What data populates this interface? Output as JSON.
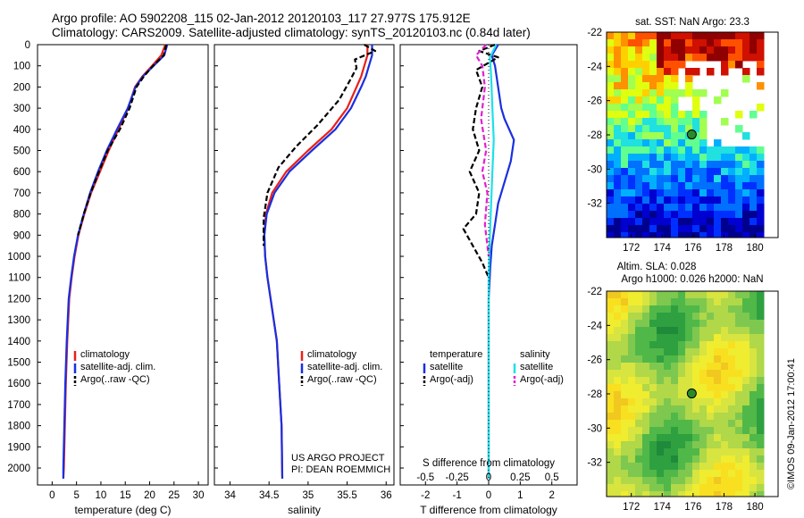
{
  "header": {
    "line1": "Argo profile: AO 5902208_115 02-Jan-2012 20120103_117 27.977S 175.912E",
    "line2": "Climatology: CARS2009. Satellite-adjusted climatology: synTS_20120103.nc (0.84d later)"
  },
  "colors": {
    "climatology": "#e8201a",
    "satellite_adj_clim": "#1a2fe0",
    "argo": "#000000",
    "temp_satellite": "#1a2fe0",
    "temp_argo": "#000000",
    "sal_satellite": "#1fe0e8",
    "sal_argo": "#e020d0"
  },
  "chart_data": [
    {
      "type": "line",
      "id": "temperature_profile",
      "xlabel": "temperature (deg C)",
      "ylabel": "",
      "xlim": [
        -3,
        32
      ],
      "ylim": [
        2080,
        0
      ],
      "xticks": [
        0,
        5,
        10,
        15,
        20,
        25,
        30
      ],
      "yticks": [
        0,
        100,
        200,
        300,
        400,
        500,
        600,
        700,
        800,
        900,
        1000,
        1100,
        1200,
        1300,
        1400,
        1500,
        1600,
        1700,
        1800,
        1900,
        2000
      ],
      "legend": [
        "climatology",
        "satellite-adj. clim.",
        "Argo(..raw -QC)"
      ],
      "legend_placement": "lower-middle",
      "series": [
        {
          "name": "climatology",
          "color": "red",
          "style": "solid",
          "x": [
            23.2,
            22.4,
            20.5,
            18.5,
            17.0,
            15.6,
            13.6,
            11.6,
            9.8,
            8.0,
            6.6,
            5.4,
            4.6,
            4.0,
            3.5,
            3.1,
            2.8,
            2.6,
            2.4,
            2.3
          ],
          "y": [
            0,
            50,
            100,
            150,
            200,
            300,
            400,
            500,
            600,
            700,
            800,
            900,
            1000,
            1100,
            1200,
            1400,
            1600,
            1800,
            2000,
            2050
          ]
        },
        {
          "name": "satellite-adj. clim.",
          "color": "blue",
          "style": "solid",
          "x": [
            23.6,
            23.0,
            20.8,
            18.6,
            17.1,
            15.5,
            13.3,
            11.2,
            9.4,
            7.8,
            6.5,
            5.3,
            4.5,
            3.9,
            3.4,
            3.0,
            2.7,
            2.5,
            2.3,
            2.3
          ],
          "y": [
            0,
            50,
            100,
            150,
            200,
            300,
            400,
            500,
            600,
            700,
            800,
            900,
            1000,
            1100,
            1200,
            1400,
            1600,
            1800,
            2000,
            2050
          ]
        },
        {
          "name": "Argo(..raw -QC)",
          "color": "black",
          "style": "dashed",
          "x": [
            23.4,
            22.9,
            20.7,
            18.8,
            17.3,
            15.9,
            13.9,
            11.4,
            9.6,
            7.9,
            6.5,
            5.3
          ],
          "y": [
            0,
            50,
            100,
            150,
            200,
            300,
            400,
            500,
            600,
            700,
            800,
            900
          ]
        }
      ]
    },
    {
      "type": "line",
      "id": "salinity_profile",
      "xlabel": "salinity",
      "ylabel": "",
      "xlim": [
        33.8,
        36.1
      ],
      "ylim": [
        2080,
        0
      ],
      "xticks": [
        34,
        34.5,
        35,
        35.5,
        36
      ],
      "legend": [
        "climatology",
        "satellite-adj. clim.",
        "Argo(..raw -QC)"
      ],
      "legend_placement": "lower-right",
      "annotation": [
        "US ARGO PROJECT",
        "PI: DEAN ROEMMICH"
      ],
      "series": [
        {
          "name": "climatology",
          "color": "red",
          "style": "solid",
          "x": [
            35.76,
            35.76,
            35.72,
            35.68,
            35.62,
            35.5,
            35.3,
            35.0,
            34.72,
            34.54,
            34.46,
            34.44,
            34.45,
            34.48,
            34.52,
            34.56,
            34.6,
            34.63,
            34.66,
            34.67
          ],
          "y": [
            0,
            50,
            100,
            150,
            200,
            300,
            400,
            500,
            600,
            700,
            800,
            900,
            1000,
            1100,
            1200,
            1300,
            1400,
            1600,
            1800,
            2050
          ]
        },
        {
          "name": "satellite-adj. clim.",
          "color": "blue",
          "style": "solid",
          "x": [
            35.82,
            35.82,
            35.78,
            35.74,
            35.68,
            35.55,
            35.35,
            35.05,
            34.76,
            34.57,
            34.47,
            34.44,
            34.45,
            34.48,
            34.52,
            34.56,
            34.6,
            34.63,
            34.66,
            34.67
          ],
          "y": [
            0,
            50,
            100,
            150,
            200,
            300,
            400,
            500,
            600,
            700,
            800,
            900,
            1000,
            1100,
            1200,
            1300,
            1400,
            1600,
            1800,
            2050
          ]
        },
        {
          "name": "Argo(..raw -QC)",
          "color": "black",
          "style": "dashed",
          "x": [
            35.72,
            35.86,
            35.6,
            35.62,
            35.55,
            35.4,
            35.12,
            34.85,
            34.62,
            34.48,
            34.43,
            34.43
          ],
          "y": [
            0,
            30,
            70,
            110,
            160,
            260,
            380,
            480,
            580,
            700,
            820,
            950
          ]
        }
      ]
    },
    {
      "type": "line",
      "id": "difference_profile",
      "xlabel": "T difference from climatology",
      "title_secondary": "S difference from climatology",
      "xticks": [
        -2,
        -1,
        0,
        1,
        2
      ],
      "xticks_secondary": [
        "-0.5",
        "-0.25",
        "0",
        "0.25",
        "0.5"
      ],
      "xlim": [
        -2.8,
        2.8
      ],
      "ylim": [
        2080,
        0
      ],
      "legend_groups": [
        {
          "header": "temperature",
          "items": [
            "satellite",
            "Argo(-adj)"
          ]
        },
        {
          "header": "salinity",
          "items": [
            "satellite",
            "Argo(-adj)"
          ]
        }
      ],
      "series": [
        {
          "name": "temperature satellite",
          "color": "blue",
          "style": "solid",
          "x": [
            0.3,
            0.1,
            0.2,
            0.3,
            0.4,
            0.5,
            0.8,
            0.7,
            0.5,
            0.3,
            0.2,
            0.1,
            0.05,
            0.0,
            0.0,
            0.0,
            0.0,
            0.0
          ],
          "y": [
            0,
            50,
            100,
            200,
            300,
            350,
            450,
            550,
            650,
            750,
            850,
            950,
            1050,
            1200,
            1400,
            1600,
            1800,
            2050
          ]
        },
        {
          "name": "temperature Argo(-adj)",
          "color": "black",
          "style": "dashed",
          "x": [
            0.2,
            -0.3,
            0.3,
            -0.4,
            -0.2,
            -0.4,
            -0.5,
            -0.3,
            -0.6,
            -0.3,
            -0.4,
            -0.8,
            -0.5,
            -0.2,
            0.0
          ],
          "y": [
            0,
            30,
            60,
            120,
            200,
            300,
            400,
            500,
            600,
            700,
            800,
            870,
            950,
            1030,
            1100
          ]
        },
        {
          "name": "salinity satellite",
          "color": "cyan",
          "style": "solid",
          "x": [
            0.06,
            0.01,
            0.02,
            0.03,
            0.04,
            0.03,
            0.02,
            0.01,
            0.0,
            0.0,
            0.0
          ],
          "y": [
            0,
            60,
            150,
            300,
            450,
            600,
            750,
            900,
            1100,
            1500,
            2050
          ]
        },
        {
          "name": "salinity Argo(-adj)",
          "color": "magenta",
          "style": "dashed",
          "x": [
            -0.02,
            -0.1,
            -0.05,
            -0.03,
            -0.06,
            -0.02,
            -0.05,
            -0.01,
            -0.03,
            0.0
          ],
          "y": [
            0,
            50,
            100,
            200,
            350,
            500,
            600,
            700,
            850,
            1000
          ]
        }
      ]
    },
    {
      "type": "heatmap",
      "id": "sst_map",
      "title": "sat. SST: NaN Argo: 23.3",
      "xticks": [
        172,
        174,
        176,
        178,
        180
      ],
      "yticks": [
        -22,
        -24,
        -26,
        -28,
        -30,
        -32
      ],
      "xlim": [
        170.4,
        181.5
      ],
      "ylim": [
        -34,
        -22
      ],
      "marker": {
        "lon": 175.912,
        "lat": -27.977
      }
    },
    {
      "type": "heatmap",
      "id": "sla_map",
      "title": "Altim. SLA: 0.028",
      "subtitle": "Argo h1000: 0.026 h2000: NaN",
      "xticks": [
        172,
        174,
        176,
        178,
        180
      ],
      "yticks": [
        -22,
        -24,
        -26,
        -28,
        -30,
        -32
      ],
      "xlim": [
        170.4,
        181.5
      ],
      "ylim": [
        -34,
        -22
      ],
      "marker": {
        "lon": 175.912,
        "lat": -27.977
      }
    }
  ],
  "ui": {
    "temp_legend": [
      "climatology",
      "satellite-adj. clim.",
      "Argo(..raw -QC)"
    ],
    "sal_legend": [
      "climatology",
      "satellite-adj. clim.",
      "Argo(..raw -QC)"
    ],
    "diff_legend": {
      "temp_header": "temperature",
      "sal_header": "salinity",
      "temp_items": [
        "satellite",
        "Argo(-adj)"
      ],
      "sal_items": [
        "satellite",
        "Argo(-adj)"
      ]
    },
    "project_line1": "US ARGO PROJECT",
    "project_line2": "PI: DEAN ROEMMICH",
    "copyright": "©IMOS 09-Jan-2012 17:00:41"
  }
}
